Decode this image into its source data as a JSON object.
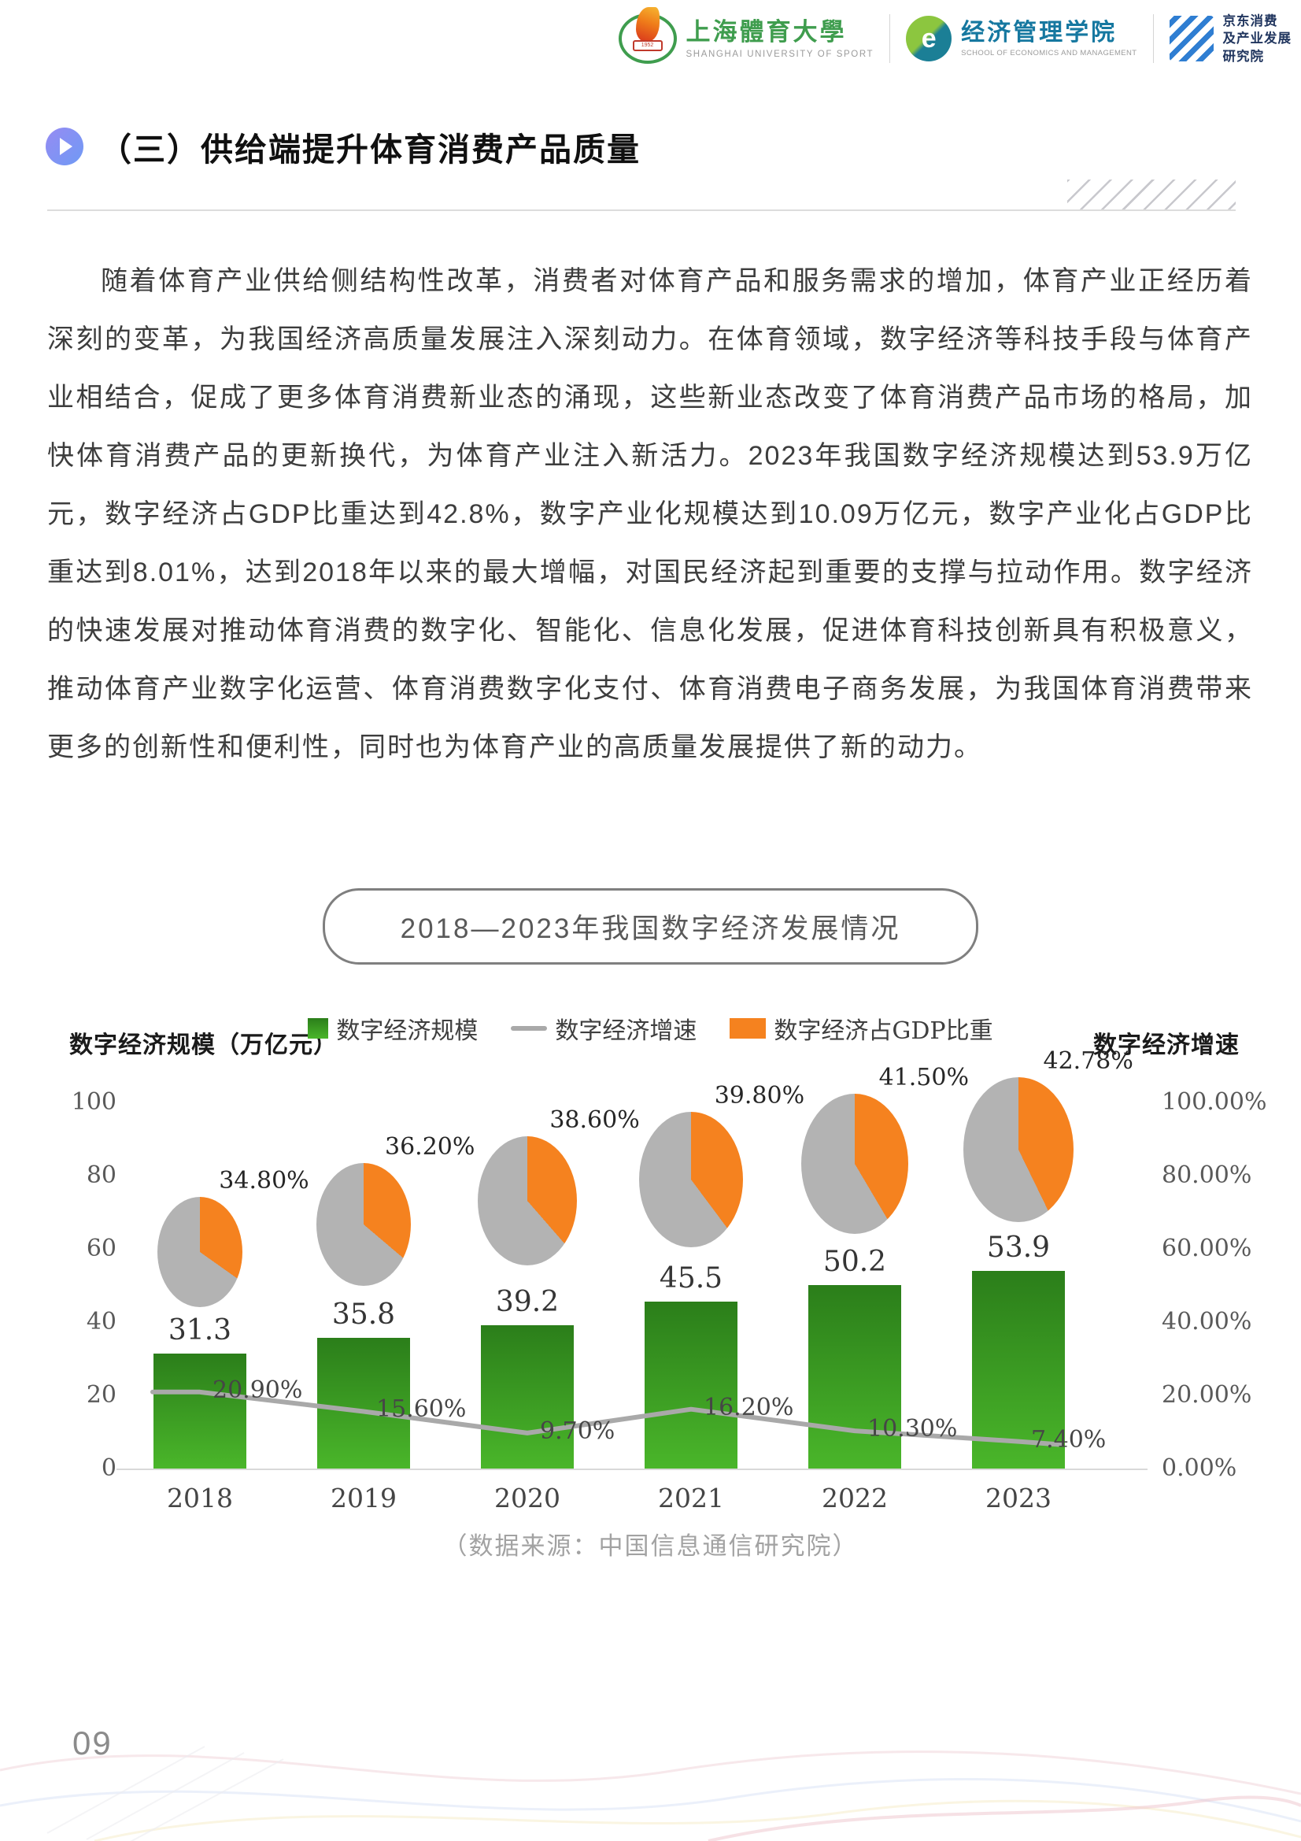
{
  "header": {
    "university": {
      "name_cn": "上海體育大學",
      "name_en": "SHANGHAI UNIVERSITY OF SPORT"
    },
    "school": {
      "mark_letter": "e",
      "name_cn": "经济管理学院",
      "name_en": "SCHOOL OF ECONOMICS AND MANAGEMENT"
    },
    "institute": {
      "name_lines": [
        "京东消费",
        "及产业发展",
        "研究院"
      ]
    }
  },
  "section": {
    "title": "（三）供给端提升体育消费产品质量"
  },
  "body": {
    "paragraph": "随着体育产业供给侧结构性改革，消费者对体育产品和服务需求的增加，体育产业正经历着深刻的变革，为我国经济高质量发展注入深刻动力。在体育领域，数字经济等科技手段与体育产业相结合，促成了更多体育消费新业态的涌现，这些新业态改变了体育消费产品市场的格局，加快体育消费产品的更新换代，为体育产业注入新活力。2023年我国数字经济规模达到53.9万亿元，数字经济占GDP比重达到42.8%，数字产业化规模达到10.09万亿元，数字产业化占GDP比重达到8.01%，达到2018年以来的最大增幅，对国民经济起到重要的支撑与拉动作用。数字经济的快速发展对推动体育消费的数字化、智能化、信息化发展，促进体育科技创新具有积极意义，推动体育产业数字化运营、体育消费数字化支付、体育消费电子商务发展，为我国体育消费带来更多的创新性和便利性，同时也为体育产业的高质量发展提供了新的动力。"
  },
  "chart": {
    "title": "2018—2023年我国数字经济发展情况",
    "legend": [
      "数字经济规模",
      "数字经济增速",
      "数字经济占GDP比重"
    ],
    "left_axis_label": "数字经济规模（万亿元）",
    "right_axis_label": "数字经济增速",
    "source": "（数据来源：中国信息通信研究院）"
  },
  "chart_data": {
    "type": "bar",
    "subtype": "combo bar + line + pie-per-category",
    "title": "2018—2023年我国数字经济发展情况",
    "categories": [
      "2018",
      "2019",
      "2020",
      "2021",
      "2022",
      "2023"
    ],
    "series": [
      {
        "name": "数字经济规模",
        "type": "bar",
        "unit": "万亿元",
        "axis": "left",
        "values": [
          31.3,
          35.8,
          39.2,
          45.5,
          50.2,
          53.9
        ],
        "labels": [
          "31.3",
          "35.8",
          "39.2",
          "45.5",
          "50.2",
          "53.9"
        ]
      },
      {
        "name": "数字经济增速",
        "type": "line",
        "unit": "%",
        "axis": "right",
        "values": [
          20.9,
          15.6,
          9.7,
          16.2,
          10.3,
          7.4
        ],
        "labels": [
          "20.90%",
          "15.60%",
          "9.70%",
          "16.20%",
          "10.30%",
          "7.40%"
        ]
      },
      {
        "name": "数字经济占GDP比重",
        "type": "pie",
        "unit": "%",
        "values": [
          34.8,
          36.2,
          38.6,
          39.8,
          41.5,
          42.78
        ],
        "labels": [
          "34.80%",
          "36.20%",
          "38.60%",
          "39.80%",
          "41.50%",
          "42.78%"
        ]
      }
    ],
    "left_axis": {
      "ticks": [
        "100",
        "80",
        "60",
        "40",
        "20",
        "0"
      ],
      "range": [
        0,
        100
      ]
    },
    "right_axis": {
      "ticks": [
        "100.00%",
        "80.00%",
        "60.00%",
        "40.00%",
        "20.00%",
        "0.00%"
      ],
      "range": [
        0,
        100
      ]
    },
    "grid": false,
    "legend_position": "top-center",
    "colors": {
      "bar_top": "#2b7e1a",
      "bar_bottom": "#4ab62a",
      "line": "#a9a9a9",
      "pie_value": "#f5821f",
      "pie_rest": "#b3b3b3"
    }
  },
  "footer": {
    "page_number": "09"
  }
}
